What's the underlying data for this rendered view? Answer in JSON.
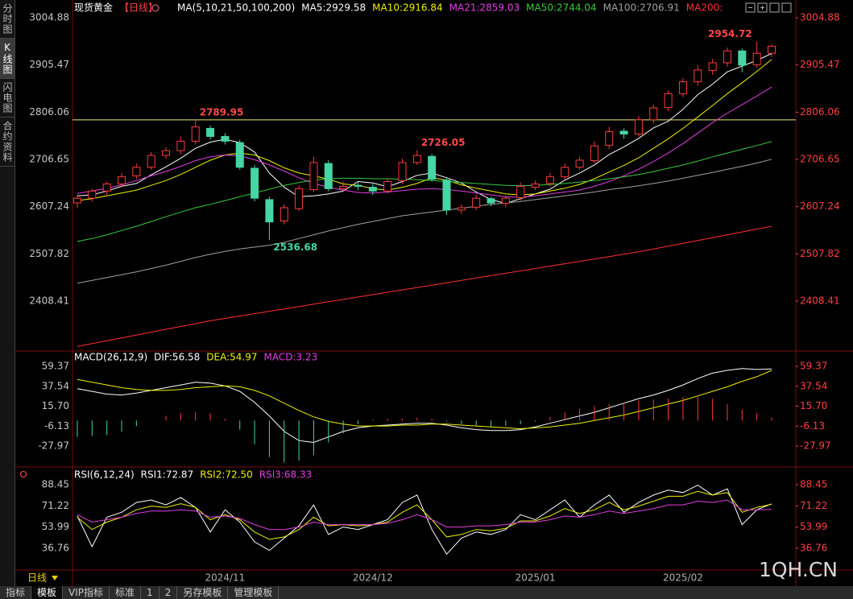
{
  "sidebar": {
    "tabs": [
      {
        "label": "分时图"
      },
      {
        "label": "K线图",
        "selected": true
      },
      {
        "label": "闪电图"
      },
      {
        "label": "合约资料"
      }
    ]
  },
  "header": {
    "title": "现货黄金",
    "period": "【日线】"
  },
  "period_selector": "日线",
  "watermark": "1QH.CN",
  "bottom_bar": {
    "tabs": [
      {
        "label": "指标"
      },
      {
        "label": "模板",
        "selected": true
      },
      {
        "label": "VIP指标"
      },
      {
        "label": "标准"
      },
      {
        "label": "1"
      },
      {
        "label": "2"
      },
      {
        "label": "另存模板"
      },
      {
        "label": "管理模板"
      }
    ]
  },
  "chart_data": [
    {
      "type": "candlestick",
      "indicator": "MA(5,10,21,50,100,200)",
      "categories": [
        null,
        null,
        null,
        null,
        null,
        null,
        null,
        null,
        null,
        null,
        "2024/11",
        null,
        null,
        null,
        null,
        null,
        null,
        null,
        null,
        null,
        "2024/12",
        null,
        null,
        null,
        null,
        null,
        null,
        null,
        null,
        null,
        null,
        "2025/01",
        null,
        null,
        null,
        null,
        null,
        null,
        null,
        null,
        null,
        "2025/02",
        null,
        null,
        null,
        null,
        null,
        null
      ],
      "candles": {
        "up_color": "#ff3b3b",
        "down_color": "#45d6a4",
        "open": [
          2615,
          2625,
          2640,
          2655,
          2672,
          2690,
          2715,
          2725,
          2745,
          2772,
          2755,
          2742,
          2688,
          2622,
          2577,
          2603,
          2643,
          2698,
          2645,
          2652,
          2648,
          2640,
          2662,
          2700,
          2713,
          2663,
          2600,
          2606,
          2624,
          2614,
          2626,
          2648,
          2656,
          2670,
          2690,
          2704,
          2736,
          2766,
          2760,
          2790,
          2816,
          2845,
          2870,
          2894,
          2910,
          2935,
          2906,
          2930
        ],
        "high": [
          2632,
          2645,
          2660,
          2678,
          2698,
          2722,
          2732,
          2755,
          2789.95,
          2778,
          2762,
          2748,
          2695,
          2628,
          2612,
          2652,
          2712,
          2705,
          2660,
          2658,
          2655,
          2665,
          2708,
          2726.05,
          2718,
          2668,
          2612,
          2632,
          2628,
          2630,
          2658,
          2662,
          2678,
          2698,
          2712,
          2745,
          2775,
          2772,
          2798,
          2822,
          2852,
          2878,
          2905,
          2918,
          2942,
          2940,
          2954.72,
          2948
        ],
        "low": [
          2605,
          2618,
          2632,
          2648,
          2665,
          2685,
          2708,
          2718,
          2738,
          2748,
          2738,
          2685,
          2618,
          2536.68,
          2570,
          2598,
          2638,
          2640,
          2638,
          2642,
          2632,
          2635,
          2655,
          2695,
          2660,
          2590,
          2592,
          2600,
          2608,
          2606,
          2620,
          2642,
          2650,
          2665,
          2685,
          2698,
          2728,
          2750,
          2755,
          2782,
          2808,
          2838,
          2862,
          2885,
          2902,
          2890,
          2900,
          2922
        ],
        "close": [
          2625,
          2640,
          2655,
          2670,
          2690,
          2715,
          2725,
          2745,
          2775,
          2755,
          2745,
          2690,
          2625,
          2575,
          2605,
          2645,
          2700,
          2645,
          2650,
          2650,
          2640,
          2660,
          2700,
          2715,
          2665,
          2600,
          2605,
          2625,
          2615,
          2625,
          2650,
          2655,
          2670,
          2690,
          2705,
          2735,
          2765,
          2760,
          2790,
          2815,
          2845,
          2870,
          2895,
          2910,
          2935,
          2905,
          2930,
          2945
        ]
      },
      "series": [
        {
          "name": "MA5:2929.58",
          "color": "#ffffff",
          "values": [
            2630,
            2632,
            2640,
            2650,
            2656,
            2674,
            2691,
            2709,
            2730,
            2743,
            2749,
            2742,
            2722,
            2678,
            2648,
            2628,
            2630,
            2634,
            2640,
            2660,
            2657,
            2649,
            2660,
            2673,
            2678,
            2668,
            2657,
            2638,
            2622,
            2614,
            2624,
            2634,
            2644,
            2663,
            2678,
            2695,
            2717,
            2733,
            2751,
            2773,
            2787,
            2812,
            2843,
            2865,
            2891,
            2903,
            2915,
            2929.58
          ]
        },
        {
          "name": "MA10:2916.84",
          "color": "#f0f000",
          "values": [
            2620,
            2624,
            2630,
            2636,
            2642,
            2652,
            2662,
            2675,
            2690,
            2705,
            2716,
            2720,
            2716,
            2704,
            2689,
            2678,
            2672,
            2665,
            2655,
            2652,
            2645,
            2642,
            2648,
            2656,
            2668,
            2663,
            2653,
            2646,
            2640,
            2634,
            2632,
            2634,
            2640,
            2646,
            2654,
            2666,
            2680,
            2694,
            2710,
            2730,
            2750,
            2772,
            2796,
            2820,
            2845,
            2868,
            2892,
            2916.84
          ]
        },
        {
          "name": "MA21:2859.03",
          "color": "#e040e0",
          "values": [
            2635,
            2640,
            2646,
            2653,
            2662,
            2672,
            2681,
            2692,
            2704,
            2712,
            2716,
            2714,
            2706,
            2695,
            2682,
            2668,
            2656,
            2648,
            2642,
            2637,
            2636,
            2638,
            2641,
            2644,
            2645,
            2643,
            2640,
            2636,
            2632,
            2628,
            2627,
            2630,
            2634,
            2638,
            2642,
            2650,
            2660,
            2672,
            2686,
            2702,
            2720,
            2740,
            2762,
            2784,
            2804,
            2822,
            2840,
            2859.03
          ]
        },
        {
          "name": "MA50:2744.04",
          "color": "#3cc83c",
          "values": [
            2534,
            2540,
            2548,
            2557,
            2566,
            2576,
            2586,
            2596,
            2605,
            2612,
            2620,
            2628,
            2636,
            2644,
            2652,
            2658,
            2663,
            2666,
            2667,
            2667,
            2666,
            2666,
            2665,
            2664,
            2662,
            2660,
            2658,
            2656,
            2654,
            2652,
            2651,
            2652,
            2654,
            2656,
            2659,
            2662,
            2666,
            2670,
            2675,
            2681,
            2688,
            2695,
            2703,
            2712,
            2720,
            2728,
            2736,
            2744.04
          ]
        },
        {
          "name": "MA100:2706.91",
          "color": "#a0a0a0",
          "values": [
            2446,
            2452,
            2458,
            2464,
            2470,
            2477,
            2484,
            2492,
            2500,
            2507,
            2513,
            2518,
            2522,
            2526,
            2532,
            2540,
            2548,
            2556,
            2563,
            2570,
            2576,
            2582,
            2588,
            2592,
            2596,
            2600,
            2604,
            2608,
            2612,
            2615,
            2618,
            2622,
            2626,
            2630,
            2634,
            2638,
            2643,
            2647,
            2651,
            2656,
            2661,
            2667,
            2673,
            2679,
            2686,
            2692,
            2699,
            2706.91
          ]
        },
        {
          "name": "MA200:",
          "color": "#ff3030",
          "values": [
            2313,
            2319,
            2325,
            2331,
            2337,
            2343,
            2349,
            2355,
            2361,
            2367,
            2372,
            2377,
            2382,
            2387,
            2392,
            2397,
            2402,
            2407,
            2412,
            2417,
            2422,
            2427,
            2432,
            2437,
            2442,
            2447,
            2452,
            2457,
            2462,
            2467,
            2472,
            2477,
            2482,
            2487,
            2492,
            2497,
            2502,
            2507,
            2512,
            2518,
            2524,
            2530,
            2536,
            2542,
            2548,
            2554,
            2560,
            2566
          ]
        }
      ],
      "hline": {
        "value": 2789.95,
        "color": "#e8e870"
      },
      "annotations": [
        {
          "value": 2789.95,
          "color": "#ff4848"
        },
        {
          "value": 2536.68,
          "color": "#45d6a4"
        },
        {
          "value": 2726.05,
          "color": "#ff4848"
        },
        {
          "value": 2954.72,
          "color": "#ff4848"
        }
      ],
      "ylim": [
        2305,
        3025.2
      ],
      "yticks": [
        3004.88,
        2905.47,
        2806.06,
        2706.65,
        2607.24,
        2507.82,
        2408.41
      ]
    },
    {
      "type": "macd",
      "title": "MACD(26,12,9)",
      "series": [
        {
          "name": "DIF:56.58",
          "color": "#ffffff",
          "values": [
            35,
            32,
            29,
            28,
            30,
            33,
            36,
            39,
            42,
            41,
            38,
            32,
            20,
            5,
            -12,
            -22,
            -24,
            -18,
            -12,
            -8,
            -6,
            -5,
            -4,
            -3,
            -3,
            -5,
            -8,
            -10,
            -11,
            -11,
            -10,
            -7,
            -3,
            1,
            5,
            9,
            14,
            19,
            24,
            28,
            33,
            39,
            46,
            52,
            55,
            57,
            56,
            56.58
          ]
        },
        {
          "name": "DEA:54.97",
          "color": "#f0f000",
          "values": [
            45,
            42,
            39,
            36,
            34,
            33,
            33,
            34,
            36,
            37,
            38,
            37,
            33,
            27,
            19,
            11,
            4,
            -1,
            -4,
            -6,
            -6,
            -6,
            -5,
            -5,
            -4,
            -4,
            -5,
            -6,
            -7,
            -8,
            -9,
            -8,
            -7,
            -5,
            -3,
            0,
            3,
            6,
            10,
            14,
            18,
            22,
            27,
            32,
            37,
            43,
            48,
            54.97
          ]
        },
        {
          "name": "MACD:3.23",
          "color": "#e040e0",
          "type": "bar",
          "pos_color": "#ff3b3b",
          "neg_color": "#45d6a4",
          "values": [
            -18,
            -17,
            -16,
            -12,
            -6,
            0,
            5,
            8,
            9,
            8,
            2,
            -10,
            -26,
            -40,
            -46,
            -44,
            -38,
            -24,
            -14,
            -4,
            1,
            2,
            2,
            3,
            2,
            -1,
            -4,
            -6,
            -7,
            -6,
            -4,
            -1,
            4,
            9,
            13,
            16,
            18,
            20,
            22,
            23,
            24,
            26,
            26,
            24,
            18,
            12,
            8,
            3.23
          ]
        }
      ],
      "ylim": [
        -50.9,
        74.4
      ],
      "yticks": [
        59.37,
        37.54,
        {
          "value": 15.7,
          "label": "15.70"
        },
        -6.13,
        -27.97
      ]
    },
    {
      "type": "line",
      "title": "RSI(6,12,24)",
      "series": [
        {
          "name": "RSI1:72.87",
          "color": "#ffffff",
          "values": [
            63,
            38,
            62,
            66,
            74,
            76,
            72,
            78,
            70,
            50,
            68,
            58,
            42,
            35,
            45,
            55,
            72,
            48,
            54,
            52,
            56,
            60,
            74,
            80,
            52,
            32,
            45,
            50,
            48,
            52,
            64,
            60,
            68,
            76,
            62,
            72,
            80,
            66,
            74,
            80,
            84,
            82,
            88,
            80,
            85,
            56,
            68,
            72.87
          ]
        },
        {
          "name": "RSI2:72.50",
          "color": "#f0f000",
          "values": [
            62,
            52,
            58,
            62,
            68,
            71,
            70,
            73,
            70,
            60,
            64,
            60,
            50,
            44,
            46,
            52,
            62,
            55,
            56,
            55,
            56,
            58,
            66,
            72,
            60,
            46,
            48,
            52,
            51,
            53,
            59,
            59,
            63,
            69,
            65,
            68,
            74,
            68,
            71,
            75,
            79,
            79,
            83,
            80,
            82,
            66,
            70,
            72.5
          ]
        },
        {
          "name": "RSI3:68.33",
          "color": "#e040e0",
          "values": [
            64,
            58,
            60,
            62,
            65,
            67,
            67,
            68,
            67,
            62,
            63,
            61,
            56,
            52,
            52,
            54,
            58,
            56,
            56,
            56,
            56,
            57,
            60,
            64,
            60,
            54,
            54,
            55,
            55,
            56,
            58,
            58,
            60,
            63,
            62,
            64,
            67,
            65,
            67,
            69,
            72,
            72,
            75,
            74,
            76,
            68,
            68,
            68.33
          ]
        }
      ],
      "ylim": [
        19.1,
        101.5
      ],
      "yticks": [
        88.45,
        71.22,
        53.99,
        36.76
      ]
    }
  ]
}
